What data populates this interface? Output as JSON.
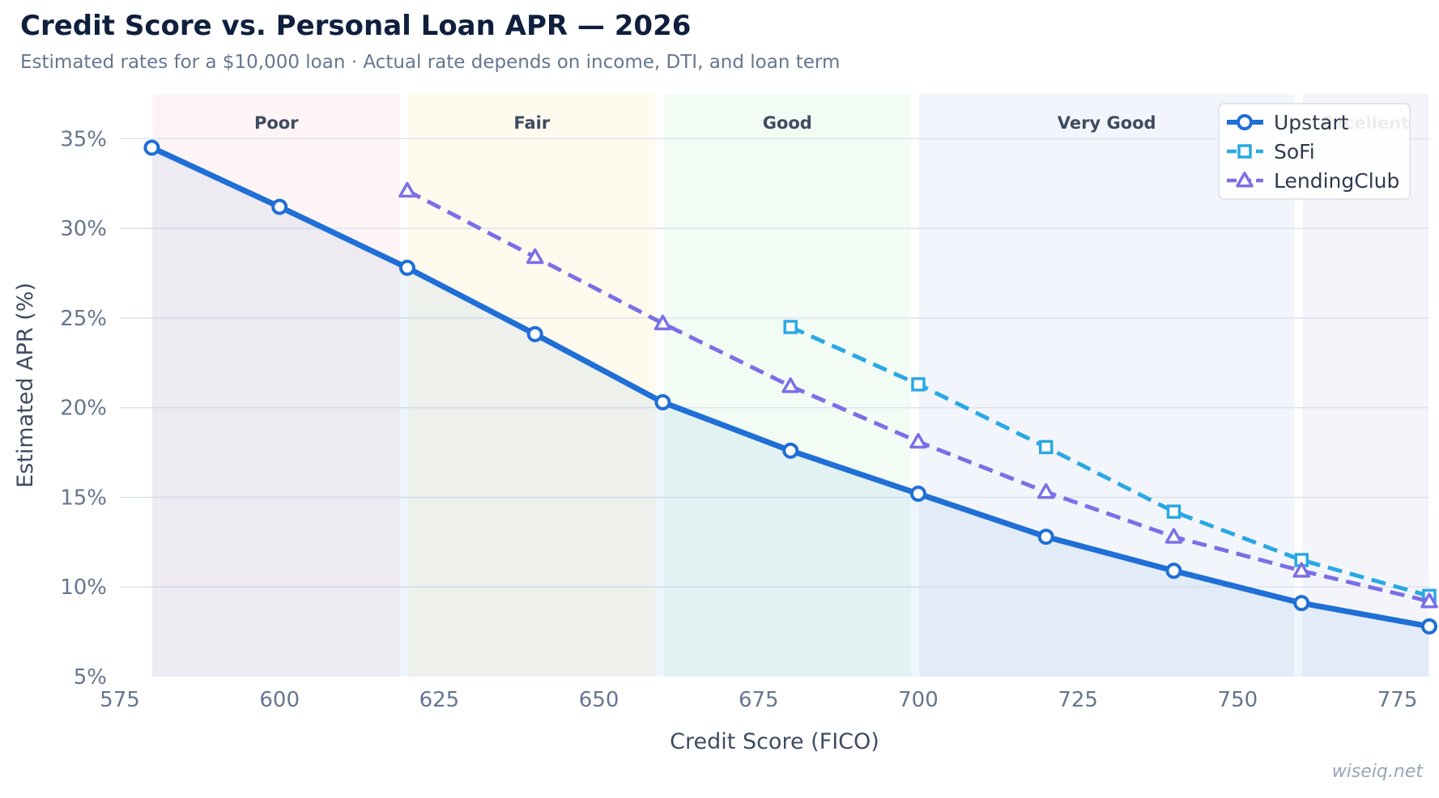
{
  "title": "Credit Score vs. Personal Loan APR — 2026",
  "subtitle": "Estimated rates for a $10,000 loan · Actual rate depends on income, DTI, and loan term",
  "watermark": "wiseiq.net",
  "chart_data": {
    "type": "line",
    "xlabel": "Credit Score (FICO)",
    "ylabel": "Estimated APR (%)",
    "xlim": [
      575,
      780
    ],
    "ylim": [
      5,
      37.5
    ],
    "xticks": [
      575,
      600,
      625,
      650,
      675,
      700,
      725,
      750,
      775
    ],
    "yticks": [
      5,
      10,
      15,
      20,
      25,
      30,
      35
    ],
    "ytick_suffix": "%",
    "grid": "horizontal",
    "legend_position": "top-right",
    "bands": [
      {
        "label": "Poor",
        "x0": 580,
        "x1": 619,
        "color": "#fdecef"
      },
      {
        "label": "Fair",
        "x0": 620,
        "x1": 659,
        "color": "#fdf7e3"
      },
      {
        "label": "Good",
        "x0": 660,
        "x1": 699,
        "color": "#e9faee"
      },
      {
        "label": "Very Good",
        "x0": 700,
        "x1": 759,
        "color": "#e9eef8"
      },
      {
        "label": "Excellent",
        "x0": 760,
        "x1": 780,
        "color": "#eceef8"
      }
    ],
    "series": [
      {
        "name": "Upstart",
        "color": "#1f6fd6",
        "marker": "circle",
        "dash": "solid",
        "x": [
          580,
          600,
          620,
          640,
          660,
          680,
          700,
          720,
          740,
          760,
          780
        ],
        "values": [
          34.5,
          31.2,
          27.8,
          24.1,
          20.3,
          17.6,
          15.2,
          12.8,
          10.9,
          9.1,
          7.8
        ]
      },
      {
        "name": "SoFi",
        "color": "#2aa8e4",
        "marker": "square",
        "dash": "dashed",
        "x": [
          680,
          700,
          720,
          740,
          760,
          780
        ],
        "values": [
          24.5,
          21.3,
          17.8,
          14.2,
          11.5,
          9.5
        ]
      },
      {
        "name": "LendingClub",
        "color": "#7b6fe6",
        "marker": "triangle",
        "dash": "dashed",
        "x": [
          620,
          640,
          660,
          680,
          700,
          720,
          740,
          760,
          780
        ],
        "values": [
          32.1,
          28.4,
          24.7,
          21.2,
          18.1,
          15.3,
          12.8,
          10.9,
          9.2
        ]
      }
    ]
  }
}
